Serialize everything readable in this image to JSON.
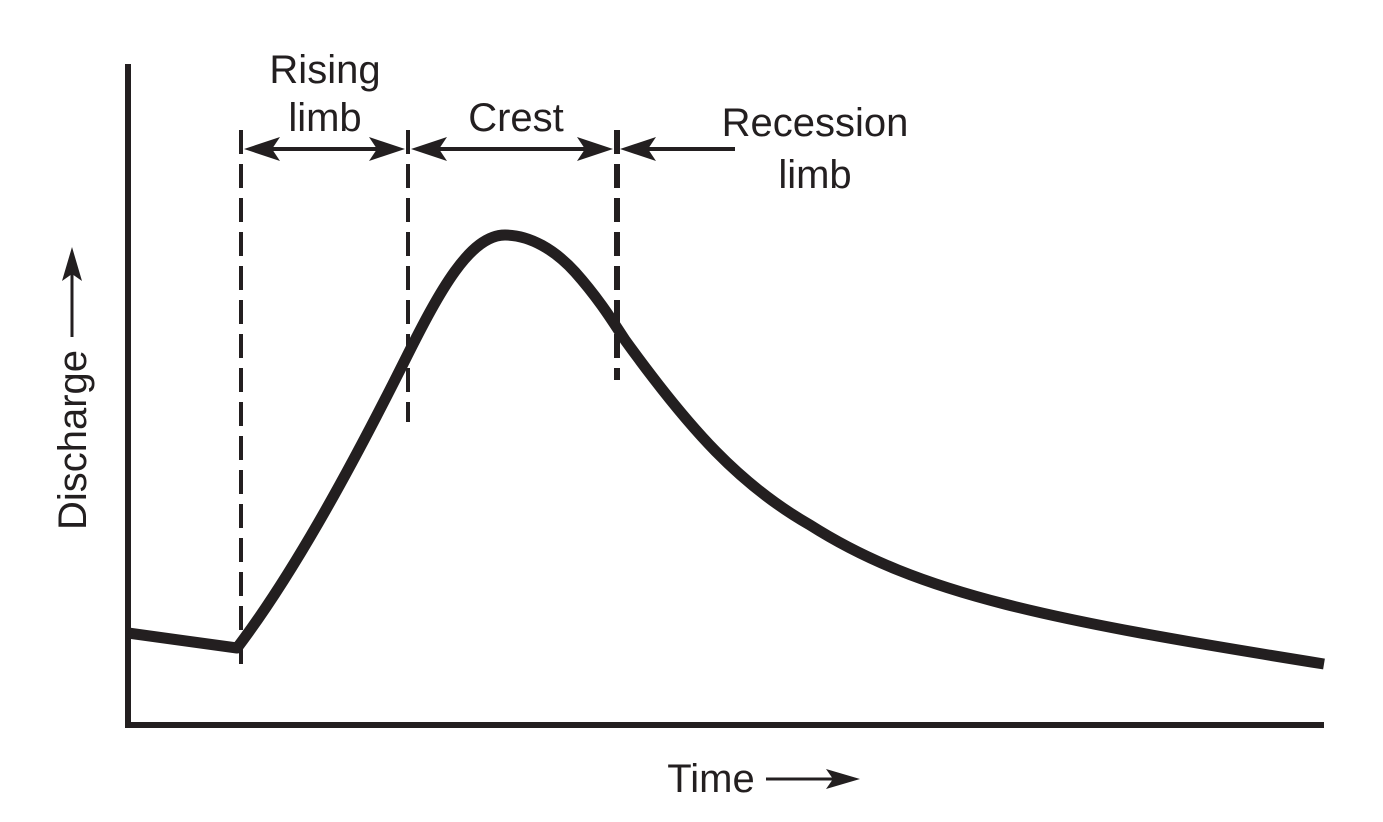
{
  "colors": {
    "ink": "#231f20",
    "background": "#ffffff"
  },
  "labels": {
    "y_axis": "Discharge",
    "x_axis": "Time",
    "rising_line1": "Rising",
    "rising_line2": "limb",
    "crest": "Crest",
    "recession_line1": "Recession",
    "recession_line2": "limb"
  },
  "icons": {
    "y_arrow": "arrow-up-icon",
    "x_arrow": "arrow-right-icon"
  }
}
